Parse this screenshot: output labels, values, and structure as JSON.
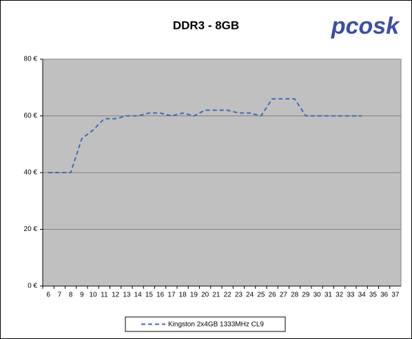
{
  "chart_data": {
    "type": "line",
    "title": "DDR3 - 8GB",
    "logo": "pcosk",
    "categories": [
      "6",
      "7",
      "8",
      "9",
      "10",
      "11",
      "12",
      "13",
      "14",
      "15",
      "16",
      "17",
      "18",
      "19",
      "20",
      "21",
      "22",
      "23",
      "24",
      "25",
      "26",
      "27",
      "28",
      "29",
      "30",
      "31",
      "32",
      "33",
      "34",
      "35",
      "36",
      "37"
    ],
    "series": [
      {
        "name": "Kingston 2x4GB 1333MHz CL9",
        "color": "#3d6bb8",
        "dashed": true,
        "values": [
          40,
          40,
          40,
          52,
          55,
          59,
          59,
          60,
          60,
          61,
          61,
          60,
          61,
          60,
          62,
          62,
          62,
          61,
          61,
          60,
          66,
          66,
          66,
          60,
          60,
          60,
          60,
          60,
          60,
          null,
          null,
          null
        ]
      }
    ],
    "ylim": [
      0,
      80
    ],
    "yticks": [
      {
        "value": 0,
        "label": "0 €"
      },
      {
        "value": 20,
        "label": "20 €"
      },
      {
        "value": 40,
        "label": "40 €"
      },
      {
        "value": 60,
        "label": "60 €"
      },
      {
        "value": 80,
        "label": "80 €"
      }
    ],
    "grid": true,
    "legend": "bottom"
  }
}
